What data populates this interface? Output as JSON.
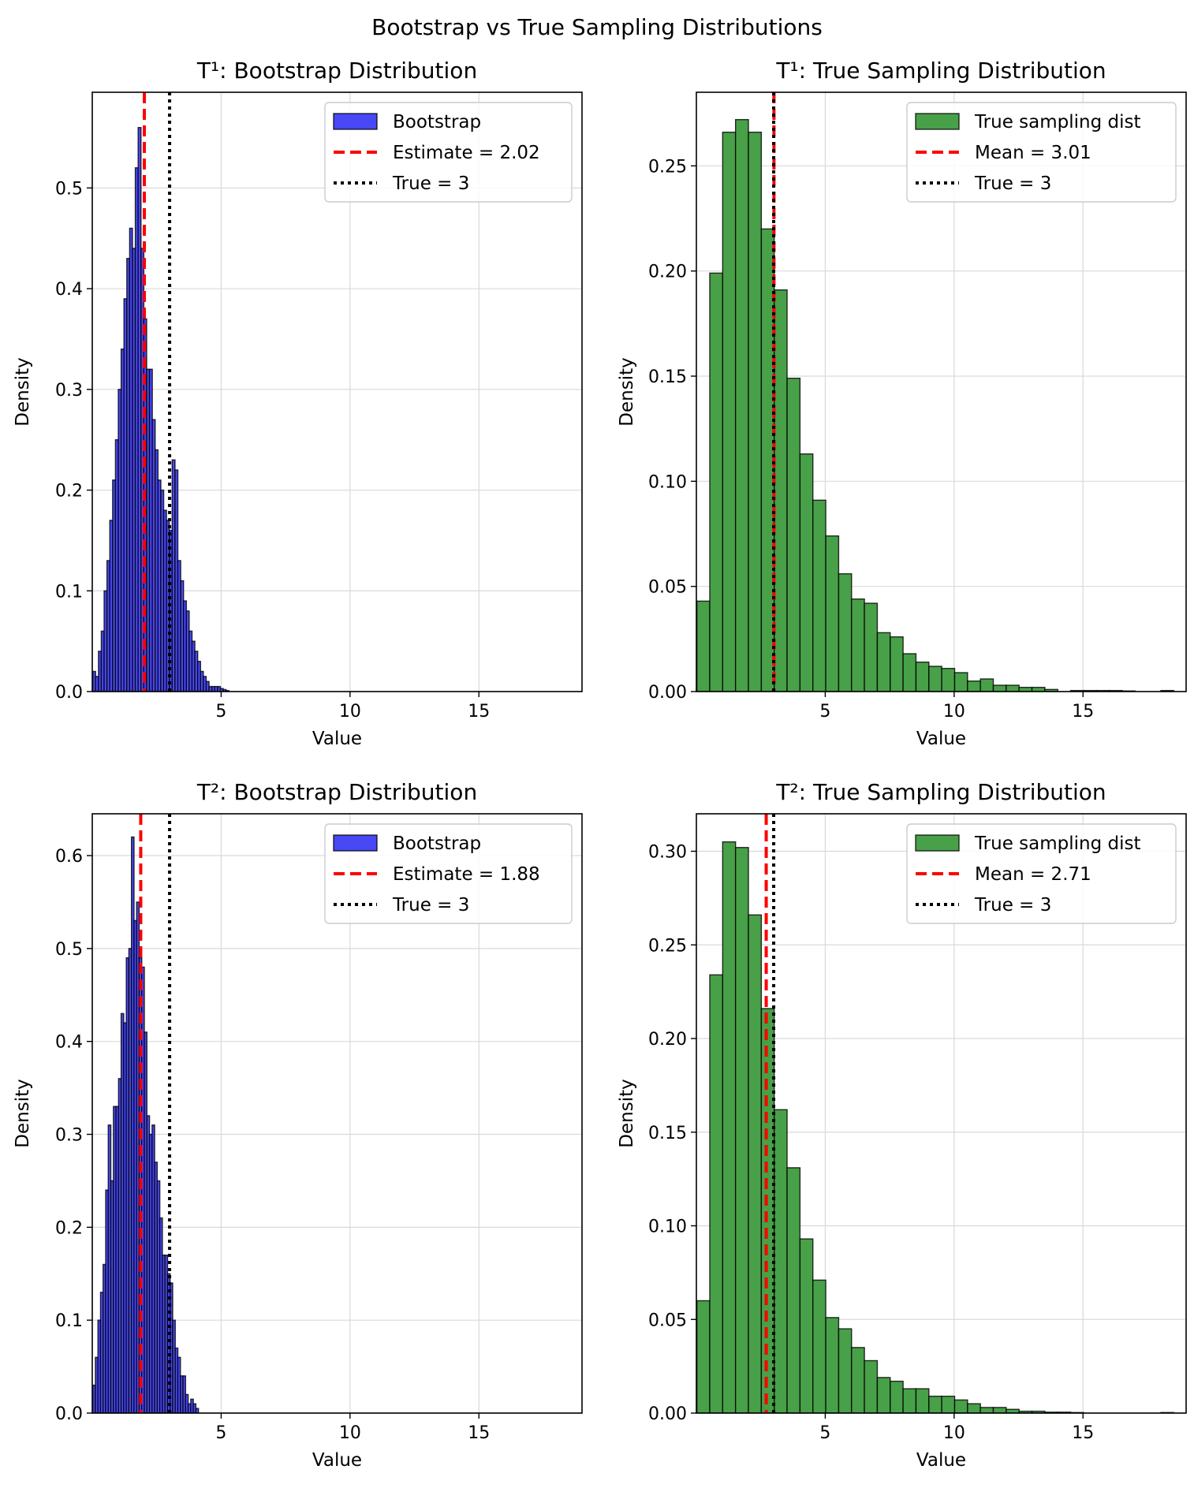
{
  "suptitle": "Bootstrap vs True Sampling Distributions",
  "colors": {
    "bootstrap_fill": "#4848f5",
    "true_fill": "#48a048",
    "bar_edge": "#000000",
    "estimate_line": "#ff0000",
    "true_line": "#000000",
    "grid": "#d9d9d9"
  },
  "chart_data": [
    {
      "type": "histogram",
      "title": "T¹: Bootstrap Distribution",
      "xlabel": "Value",
      "ylabel": "Density",
      "xlim": [
        0,
        19
      ],
      "ylim": [
        0,
        0.595
      ],
      "xticks": [
        5,
        10,
        15
      ],
      "yticks": [
        0.0,
        0.1,
        0.2,
        0.3,
        0.4,
        0.5
      ],
      "ytick_labels": [
        "0.0",
        "0.1",
        "0.2",
        "0.3",
        "0.4",
        "0.5"
      ],
      "grid": true,
      "legend_position": "top-right",
      "bar_color": "bootstrap_fill",
      "bins": {
        "start": 0.02,
        "width": 0.11,
        "values": [
          0.02,
          0.015,
          0.04,
          0.06,
          0.1,
          0.13,
          0.17,
          0.21,
          0.25,
          0.3,
          0.34,
          0.39,
          0.43,
          0.46,
          0.44,
          0.52,
          0.56,
          0.44,
          0.37,
          0.32,
          0.32,
          0.27,
          0.24,
          0.21,
          0.2,
          0.18,
          0.17,
          0.16,
          0.23,
          0.22,
          0.13,
          0.11,
          0.09,
          0.08,
          0.06,
          0.05,
          0.04,
          0.03,
          0.02,
          0.015,
          0.01,
          0.005,
          0.005,
          0.005,
          0.005,
          0.003,
          0.002,
          0.001
        ]
      },
      "lines": [
        {
          "label": "Estimate = 2.02",
          "x": 2.02,
          "style": "dashed",
          "color": "estimate_line"
        },
        {
          "label": "True = 3",
          "x": 3,
          "style": "dotted",
          "color": "true_line"
        }
      ],
      "legend": [
        "Bootstrap",
        "Estimate = 2.02",
        "True = 3"
      ]
    },
    {
      "type": "histogram",
      "title": "T¹: True Sampling Distribution",
      "xlabel": "Value",
      "ylabel": "Density",
      "xlim": [
        0,
        19
      ],
      "ylim": [
        0,
        0.285
      ],
      "xticks": [
        5,
        10,
        15
      ],
      "yticks": [
        0.0,
        0.05,
        0.1,
        0.15,
        0.2,
        0.25
      ],
      "ytick_labels": [
        "0.00",
        "0.05",
        "0.10",
        "0.15",
        "0.20",
        "0.25"
      ],
      "grid": true,
      "legend_position": "top-right",
      "bar_color": "true_fill",
      "bins": {
        "start": 0.02,
        "width": 0.5,
        "values": [
          0.043,
          0.199,
          0.266,
          0.272,
          0.266,
          0.22,
          0.191,
          0.149,
          0.113,
          0.091,
          0.074,
          0.056,
          0.044,
          0.042,
          0.028,
          0.026,
          0.018,
          0.014,
          0.012,
          0.011,
          0.009,
          0.005,
          0.006,
          0.003,
          0.003,
          0.002,
          0.002,
          0.001,
          0,
          0.0005,
          0.0005,
          0.0005,
          0.0005,
          0.0003,
          0,
          0,
          0.0005
        ]
      },
      "lines": [
        {
          "label": "Mean = 3.01",
          "x": 3.01,
          "style": "dashed",
          "color": "estimate_line"
        },
        {
          "label": "True = 3",
          "x": 3,
          "style": "dotted",
          "color": "true_line"
        }
      ],
      "legend": [
        "True sampling dist",
        "Mean = 3.01",
        "True = 3"
      ]
    },
    {
      "type": "histogram",
      "title": "T²: Bootstrap Distribution",
      "xlabel": "Value",
      "ylabel": "Density",
      "xlim": [
        0,
        19
      ],
      "ylim": [
        0,
        0.645
      ],
      "xticks": [
        5,
        10,
        15
      ],
      "yticks": [
        0.0,
        0.1,
        0.2,
        0.3,
        0.4,
        0.5,
        0.6
      ],
      "ytick_labels": [
        "0.0",
        "0.1",
        "0.2",
        "0.3",
        "0.4",
        "0.5",
        "0.6"
      ],
      "grid": true,
      "legend_position": "top-right",
      "bar_color": "bootstrap_fill",
      "bins": {
        "start": 0.02,
        "width": 0.1,
        "values": [
          0.03,
          0.06,
          0.1,
          0.13,
          0.16,
          0.24,
          0.31,
          0.25,
          0.33,
          0.33,
          0.36,
          0.43,
          0.42,
          0.49,
          0.5,
          0.62,
          0.53,
          0.55,
          0.49,
          0.48,
          0.41,
          0.32,
          0.3,
          0.31,
          0.27,
          0.25,
          0.21,
          0.17,
          0.17,
          0.15,
          0.14,
          0.1,
          0.07,
          0.06,
          0.04,
          0.04,
          0.02,
          0.01,
          0.015,
          0.01,
          0.005
        ]
      },
      "lines": [
        {
          "label": "Estimate = 1.88",
          "x": 1.88,
          "style": "dashed",
          "color": "estimate_line"
        },
        {
          "label": "True = 3",
          "x": 3,
          "style": "dotted",
          "color": "true_line"
        }
      ],
      "legend": [
        "Bootstrap",
        "Estimate = 1.88",
        "True = 3"
      ]
    },
    {
      "type": "histogram",
      "title": "T²: True Sampling Distribution",
      "xlabel": "Value",
      "ylabel": "Density",
      "xlim": [
        0,
        19
      ],
      "ylim": [
        0,
        0.32
      ],
      "xticks": [
        5,
        10,
        15
      ],
      "yticks": [
        0.0,
        0.05,
        0.1,
        0.15,
        0.2,
        0.25,
        0.3
      ],
      "ytick_labels": [
        "0.00",
        "0.05",
        "0.10",
        "0.15",
        "0.20",
        "0.25",
        "0.30"
      ],
      "grid": true,
      "legend_position": "top-right",
      "bar_color": "true_fill",
      "bins": {
        "start": 0.02,
        "width": 0.5,
        "values": [
          0.06,
          0.234,
          0.305,
          0.302,
          0.266,
          0.216,
          0.162,
          0.131,
          0.093,
          0.071,
          0.051,
          0.045,
          0.035,
          0.028,
          0.019,
          0.017,
          0.013,
          0.013,
          0.009,
          0.009,
          0.007,
          0.005,
          0.003,
          0.003,
          0.002,
          0.001,
          0.001,
          0.0005,
          0.0005,
          0.0003,
          0,
          0,
          0,
          0,
          0,
          0,
          0.0003
        ]
      },
      "lines": [
        {
          "label": "Mean = 2.71",
          "x": 2.71,
          "style": "dashed",
          "color": "estimate_line"
        },
        {
          "label": "True = 3",
          "x": 3,
          "style": "dotted",
          "color": "true_line"
        }
      ],
      "legend": [
        "True sampling dist",
        "Mean = 2.71",
        "True = 3"
      ]
    }
  ]
}
